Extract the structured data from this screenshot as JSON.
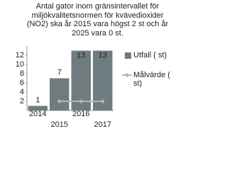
{
  "chart_data": {
    "type": "bar",
    "title": "Antal gator inom gränsintervallet för miljökvalitetsnormen för kvävedioxider (NO2) ska år 2015 vara högst 2 st och år 2025 vara 0 st.",
    "categories": [
      "2014",
      "2015",
      "2016",
      "2017"
    ],
    "series": [
      {
        "name": "Utfall ( st)",
        "type": "bar",
        "color": "#6e7c80",
        "values": [
          1,
          7,
          13,
          13
        ]
      },
      {
        "name": "Målvärde ( st)",
        "type": "line",
        "color": "#b4b4b4",
        "values": [
          null,
          2,
          2,
          2
        ]
      }
    ],
    "ylim": [
      0,
      14
    ],
    "yticks": [
      2,
      4,
      6,
      8,
      10,
      12
    ],
    "grid": false,
    "legend": "right"
  }
}
